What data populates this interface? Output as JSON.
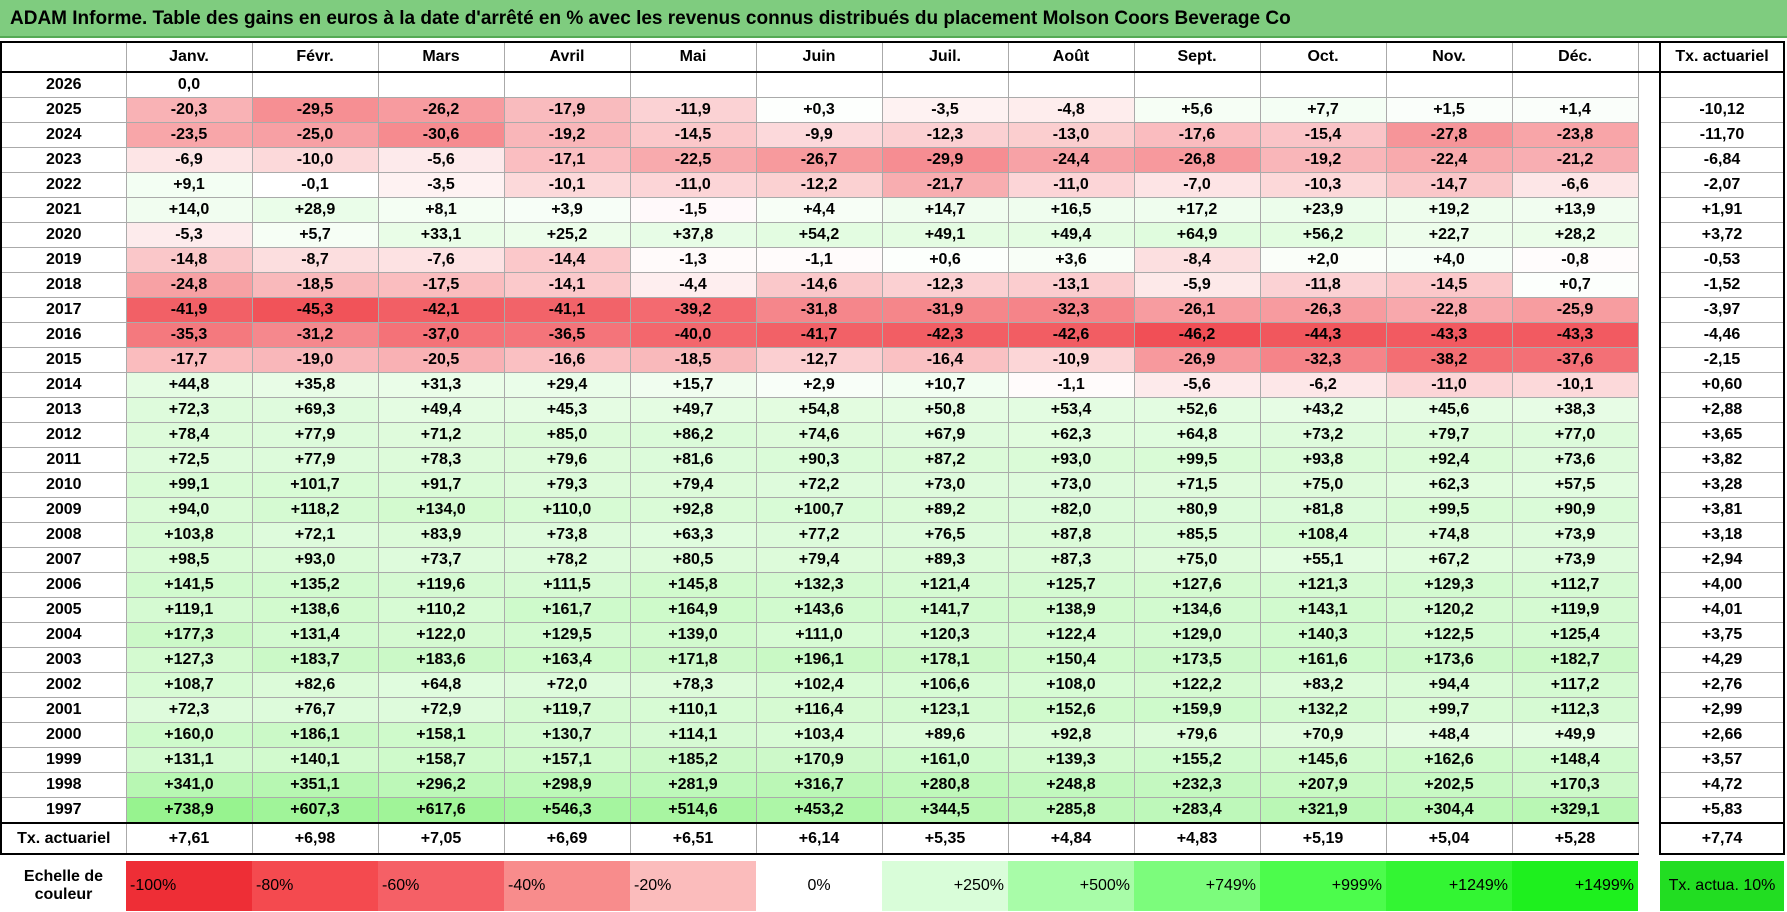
{
  "title": "ADAM Informe. Table des gains en euros à la date d'arrêté en % avec les revenus connus distribués du placement Molson Coors Beverage Co",
  "header": {
    "months": [
      "Janv.",
      "Févr.",
      "Mars",
      "Avril",
      "Mai",
      "Juin",
      "Juil.",
      "Août",
      "Sept.",
      "Oct.",
      "Nov.",
      "Déc."
    ],
    "rate": "Tx. actuariel"
  },
  "rows": [
    {
      "year": "2026",
      "values": [
        "0,0"
      ]
    },
    {
      "year": "2025",
      "values": [
        "-20,3",
        "-29,5",
        "-26,2",
        "-17,9",
        "-11,9",
        "+0,3",
        "-3,5",
        "-4,8",
        "+5,6",
        "+7,7",
        "+1,5",
        "+1,4"
      ],
      "rate": "-10,12"
    },
    {
      "year": "2024",
      "values": [
        "-23,5",
        "-25,0",
        "-30,6",
        "-19,2",
        "-14,5",
        "-9,9",
        "-12,3",
        "-13,0",
        "-17,6",
        "-15,4",
        "-27,8",
        "-23,8"
      ],
      "rate": "-11,70"
    },
    {
      "year": "2023",
      "values": [
        "-6,9",
        "-10,0",
        "-5,6",
        "-17,1",
        "-22,5",
        "-26,7",
        "-29,9",
        "-24,4",
        "-26,8",
        "-19,2",
        "-22,4",
        "-21,2"
      ],
      "rate": "-6,84"
    },
    {
      "year": "2022",
      "values": [
        "+9,1",
        "-0,1",
        "-3,5",
        "-10,1",
        "-11,0",
        "-12,2",
        "-21,7",
        "-11,0",
        "-7,0",
        "-10,3",
        "-14,7",
        "-6,6"
      ],
      "rate": "-2,07"
    },
    {
      "year": "2021",
      "values": [
        "+14,0",
        "+28,9",
        "+8,1",
        "+3,9",
        "-1,5",
        "+4,4",
        "+14,7",
        "+16,5",
        "+17,2",
        "+23,9",
        "+19,2",
        "+13,9"
      ],
      "rate": "+1,91"
    },
    {
      "year": "2020",
      "values": [
        "-5,3",
        "+5,7",
        "+33,1",
        "+25,2",
        "+37,8",
        "+54,2",
        "+49,1",
        "+49,4",
        "+64,9",
        "+56,2",
        "+22,7",
        "+28,2"
      ],
      "rate": "+3,72"
    },
    {
      "year": "2019",
      "values": [
        "-14,8",
        "-8,7",
        "-7,6",
        "-14,4",
        "-1,3",
        "-1,1",
        "+0,6",
        "+3,6",
        "-8,4",
        "+2,0",
        "+4,0",
        "-0,8"
      ],
      "rate": "-0,53"
    },
    {
      "year": "2018",
      "values": [
        "-24,8",
        "-18,5",
        "-17,5",
        "-14,1",
        "-4,4",
        "-14,6",
        "-12,3",
        "-13,1",
        "-5,9",
        "-11,8",
        "-14,5",
        "+0,7"
      ],
      "rate": "-1,52"
    },
    {
      "year": "2017",
      "values": [
        "-41,9",
        "-45,3",
        "-42,1",
        "-41,1",
        "-39,2",
        "-31,8",
        "-31,9",
        "-32,3",
        "-26,1",
        "-26,3",
        "-22,8",
        "-25,9"
      ],
      "rate": "-3,97"
    },
    {
      "year": "2016",
      "values": [
        "-35,3",
        "-31,2",
        "-37,0",
        "-36,5",
        "-40,0",
        "-41,7",
        "-42,3",
        "-42,6",
        "-46,2",
        "-44,3",
        "-43,3",
        "-43,3"
      ],
      "rate": "-4,46"
    },
    {
      "year": "2015",
      "values": [
        "-17,7",
        "-19,0",
        "-20,5",
        "-16,6",
        "-18,5",
        "-12,7",
        "-16,4",
        "-10,9",
        "-26,9",
        "-32,3",
        "-38,2",
        "-37,6"
      ],
      "rate": "-2,15"
    },
    {
      "year": "2014",
      "values": [
        "+44,8",
        "+35,8",
        "+31,3",
        "+29,4",
        "+15,7",
        "+2,9",
        "+10,7",
        "-1,1",
        "-5,6",
        "-6,2",
        "-11,0",
        "-10,1"
      ],
      "rate": "+0,60"
    },
    {
      "year": "2013",
      "values": [
        "+72,3",
        "+69,3",
        "+49,4",
        "+45,3",
        "+49,7",
        "+54,8",
        "+50,8",
        "+53,4",
        "+52,6",
        "+43,2",
        "+45,6",
        "+38,3"
      ],
      "rate": "+2,88"
    },
    {
      "year": "2012",
      "values": [
        "+78,4",
        "+77,9",
        "+71,2",
        "+85,0",
        "+86,2",
        "+74,6",
        "+67,9",
        "+62,3",
        "+64,8",
        "+73,2",
        "+79,7",
        "+77,0"
      ],
      "rate": "+3,65"
    },
    {
      "year": "2011",
      "values": [
        "+72,5",
        "+77,9",
        "+78,3",
        "+79,6",
        "+81,6",
        "+90,3",
        "+87,2",
        "+93,0",
        "+99,5",
        "+93,8",
        "+92,4",
        "+73,6"
      ],
      "rate": "+3,82"
    },
    {
      "year": "2010",
      "values": [
        "+99,1",
        "+101,7",
        "+91,7",
        "+79,3",
        "+79,4",
        "+72,2",
        "+73,0",
        "+73,0",
        "+71,5",
        "+75,0",
        "+62,3",
        "+57,5"
      ],
      "rate": "+3,28"
    },
    {
      "year": "2009",
      "values": [
        "+94,0",
        "+118,2",
        "+134,0",
        "+110,0",
        "+92,8",
        "+100,7",
        "+89,2",
        "+82,0",
        "+80,9",
        "+81,8",
        "+99,5",
        "+90,9"
      ],
      "rate": "+3,81"
    },
    {
      "year": "2008",
      "values": [
        "+103,8",
        "+72,1",
        "+83,9",
        "+73,8",
        "+63,3",
        "+77,2",
        "+76,5",
        "+87,8",
        "+85,5",
        "+108,4",
        "+74,8",
        "+73,9"
      ],
      "rate": "+3,18"
    },
    {
      "year": "2007",
      "values": [
        "+98,5",
        "+93,0",
        "+73,7",
        "+78,2",
        "+80,5",
        "+79,4",
        "+89,3",
        "+87,3",
        "+75,0",
        "+55,1",
        "+67,2",
        "+73,9"
      ],
      "rate": "+2,94"
    },
    {
      "year": "2006",
      "values": [
        "+141,5",
        "+135,2",
        "+119,6",
        "+111,5",
        "+145,8",
        "+132,3",
        "+121,4",
        "+125,7",
        "+127,6",
        "+121,3",
        "+129,3",
        "+112,7"
      ],
      "rate": "+4,00"
    },
    {
      "year": "2005",
      "values": [
        "+119,1",
        "+138,6",
        "+110,2",
        "+161,7",
        "+164,9",
        "+143,6",
        "+141,7",
        "+138,9",
        "+134,6",
        "+143,1",
        "+120,2",
        "+119,9"
      ],
      "rate": "+4,01"
    },
    {
      "year": "2004",
      "values": [
        "+177,3",
        "+131,4",
        "+122,0",
        "+129,5",
        "+139,0",
        "+111,0",
        "+120,3",
        "+122,4",
        "+129,0",
        "+140,3",
        "+122,5",
        "+125,4"
      ],
      "rate": "+3,75"
    },
    {
      "year": "2003",
      "values": [
        "+127,3",
        "+183,7",
        "+183,6",
        "+163,4",
        "+171,8",
        "+196,1",
        "+178,1",
        "+150,4",
        "+173,5",
        "+161,6",
        "+173,6",
        "+182,7"
      ],
      "rate": "+4,29"
    },
    {
      "year": "2002",
      "values": [
        "+108,7",
        "+82,6",
        "+64,8",
        "+72,0",
        "+78,3",
        "+102,4",
        "+106,6",
        "+108,0",
        "+122,2",
        "+83,2",
        "+94,4",
        "+117,2"
      ],
      "rate": "+2,76"
    },
    {
      "year": "2001",
      "values": [
        "+72,3",
        "+76,7",
        "+72,9",
        "+119,7",
        "+110,1",
        "+116,4",
        "+123,1",
        "+152,6",
        "+159,9",
        "+132,2",
        "+99,7",
        "+112,3"
      ],
      "rate": "+2,99"
    },
    {
      "year": "2000",
      "values": [
        "+160,0",
        "+186,1",
        "+158,1",
        "+130,7",
        "+114,1",
        "+103,4",
        "+89,6",
        "+92,8",
        "+79,6",
        "+70,9",
        "+48,4",
        "+49,9"
      ],
      "rate": "+2,66"
    },
    {
      "year": "1999",
      "values": [
        "+131,1",
        "+140,1",
        "+158,7",
        "+157,1",
        "+185,2",
        "+170,9",
        "+161,0",
        "+139,3",
        "+155,2",
        "+145,6",
        "+162,6",
        "+148,4"
      ],
      "rate": "+3,57"
    },
    {
      "year": "1998",
      "values": [
        "+341,0",
        "+351,1",
        "+296,2",
        "+298,9",
        "+281,9",
        "+316,7",
        "+280,8",
        "+248,8",
        "+232,3",
        "+207,9",
        "+202,5",
        "+170,3"
      ],
      "rate": "+4,72"
    },
    {
      "year": "1997",
      "values": [
        "+738,9",
        "+607,3",
        "+617,6",
        "+546,3",
        "+514,6",
        "+453,2",
        "+344,5",
        "+285,8",
        "+283,4",
        "+321,9",
        "+304,4",
        "+329,1"
      ],
      "rate": "+5,83"
    }
  ],
  "footer": {
    "label": "Tx. actuariel",
    "values": [
      "+7,61",
      "+6,98",
      "+7,05",
      "+6,69",
      "+6,51",
      "+6,14",
      "+5,35",
      "+4,84",
      "+4,83",
      "+5,19",
      "+5,04",
      "+5,28"
    ],
    "rate": "+7,74"
  },
  "scale": {
    "label": "Echelle de couleur",
    "items": [
      "-100%",
      "-80%",
      "-60%",
      "-40%",
      "-20%",
      "0%",
      "+250%",
      "+500%",
      "+749%",
      "+999%",
      "+1249%",
      "+1499%"
    ],
    "rate": "Tx. actua. 10%"
  }
}
